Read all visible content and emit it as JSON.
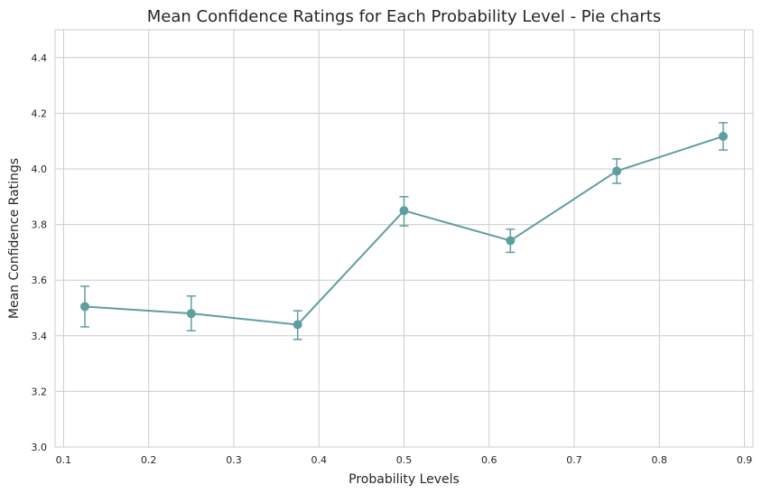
{
  "chart_data": {
    "type": "line",
    "title": "Mean Confidence Ratings for Each Probability Level - Pie charts",
    "xlabel": "Probability Levels",
    "ylabel": "Mean Confidence Ratings",
    "xlim": [
      0.09,
      0.91
    ],
    "ylim": [
      3.0,
      4.5
    ],
    "xticks": [
      "0.1",
      "0.2",
      "0.3",
      "0.4",
      "0.5",
      "0.6",
      "0.7",
      "0.8",
      "0.9"
    ],
    "yticks": [
      "3.0",
      "3.2",
      "3.4",
      "3.6",
      "3.8",
      "4.0",
      "4.2",
      "4.4"
    ],
    "grid": true,
    "series": [
      {
        "color": "#5f9ea0",
        "x": [
          0.125,
          0.25,
          0.375,
          0.5,
          0.625,
          0.75,
          0.875
        ],
        "y": [
          3.505,
          3.48,
          3.44,
          3.85,
          3.742,
          3.992,
          4.117
        ],
        "error_low": [
          3.432,
          3.418,
          3.387,
          3.795,
          3.7,
          3.948,
          4.068
        ],
        "error_high": [
          3.578,
          3.543,
          3.49,
          3.9,
          3.783,
          4.036,
          4.166
        ]
      }
    ]
  }
}
